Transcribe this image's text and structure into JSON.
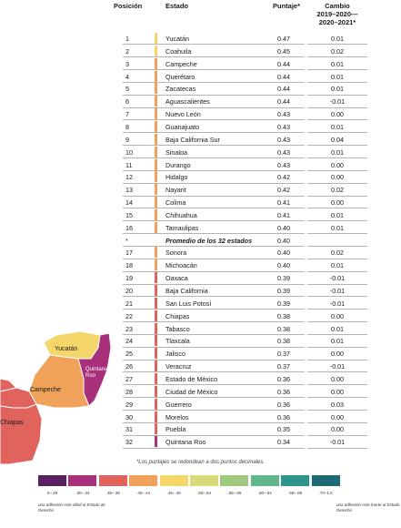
{
  "headers": {
    "position": "Posición",
    "state": "Estado",
    "score": "Puntaje*",
    "change_line1": "Cambio",
    "change_line2": "2019–2020—",
    "change_line3": "2020–2021*"
  },
  "chart_data": {
    "type": "table",
    "columns": [
      "Posición",
      "Estado",
      "Puntaje*",
      "Cambio 2019–2020— 2020–2021*"
    ],
    "rows": [
      {
        "rank": "1",
        "state": "Yucatán",
        "score": "0.47",
        "change": "0.01"
      },
      {
        "rank": "2",
        "state": "Coahuila",
        "score": "0.45",
        "change": "0.02"
      },
      {
        "rank": "3",
        "state": "Campeche",
        "score": "0.44",
        "change": "0.01"
      },
      {
        "rank": "4",
        "state": "Querétaro",
        "score": "0.44",
        "change": "0.01"
      },
      {
        "rank": "5",
        "state": "Zacatecas",
        "score": "0.44",
        "change": "0.01"
      },
      {
        "rank": "6",
        "state": "Aguascalientes",
        "score": "0.44",
        "change": "-0.01"
      },
      {
        "rank": "7",
        "state": "Nuevo León",
        "score": "0.43",
        "change": "0.00"
      },
      {
        "rank": "8",
        "state": "Guanajuato",
        "score": "0.43",
        "change": "0.01"
      },
      {
        "rank": "9",
        "state": "Baja California Sur",
        "score": "0.43",
        "change": "0.04"
      },
      {
        "rank": "10",
        "state": "Sinaloa",
        "score": "0.43",
        "change": "0.01"
      },
      {
        "rank": "11",
        "state": "Durango",
        "score": "0.43",
        "change": "0.00"
      },
      {
        "rank": "12",
        "state": "Hidalgo",
        "score": "0.42",
        "change": "0.00"
      },
      {
        "rank": "13",
        "state": "Nayarit",
        "score": "0.42",
        "change": "0.02"
      },
      {
        "rank": "14",
        "state": "Colima",
        "score": "0.41",
        "change": "0.00"
      },
      {
        "rank": "15",
        "state": "Chihuahua",
        "score": "0.41",
        "change": "0.01"
      },
      {
        "rank": "16",
        "state": "Tamaulipas",
        "score": "0.40",
        "change": "0.01"
      },
      {
        "rank": "*",
        "state": "Promedio de los 32 estados",
        "score": "0.40",
        "change": "",
        "average": true
      },
      {
        "rank": "17",
        "state": "Sonora",
        "score": "0.40",
        "change": "0.02"
      },
      {
        "rank": "18",
        "state": "Michoacán",
        "score": "0.40",
        "change": "0.01"
      },
      {
        "rank": "19",
        "state": "Oaxaca",
        "score": "0.39",
        "change": "-0.01"
      },
      {
        "rank": "20",
        "state": "Baja California",
        "score": "0.39",
        "change": "-0.01"
      },
      {
        "rank": "21",
        "state": "San Luis Potosí",
        "score": "0.39",
        "change": "-0.01"
      },
      {
        "rank": "22",
        "state": "Chiapas",
        "score": "0.38",
        "change": "0.00"
      },
      {
        "rank": "23",
        "state": "Tabasco",
        "score": "0.38",
        "change": "0.01"
      },
      {
        "rank": "24",
        "state": "Tlaxcala",
        "score": "0.38",
        "change": "0.01"
      },
      {
        "rank": "25",
        "state": "Jalisco",
        "score": "0.37",
        "change": "0.00"
      },
      {
        "rank": "26",
        "state": "Veracruz",
        "score": "0.37",
        "change": "-0.01"
      },
      {
        "rank": "27",
        "state": "Estado de México",
        "score": "0.36",
        "change": "0.00"
      },
      {
        "rank": "28",
        "state": "Ciudad de México",
        "score": "0.36",
        "change": "0.00"
      },
      {
        "rank": "29",
        "state": "Guerrero",
        "score": "0.36",
        "change": "0.03"
      },
      {
        "rank": "30",
        "state": "Morelos",
        "score": "0.36",
        "change": "0.00"
      },
      {
        "rank": "31",
        "state": "Puebla",
        "score": "0.35",
        "change": "0.00"
      },
      {
        "rank": "32",
        "state": "Quintana Roo",
        "score": "0.34",
        "change": "-0.01"
      }
    ]
  },
  "footnote": "*Los puntajes se redondean a dos puntos decimales.",
  "legend": {
    "bins": [
      {
        "label": "0–.29",
        "color": "#5a1f63"
      },
      {
        "label": ".30–.34",
        "color": "#a8307a"
      },
      {
        "label": ".35–.39",
        "color": "#e0635d"
      },
      {
        "label": ".40–.44",
        "color": "#f0a15a"
      },
      {
        "label": ".45–.49",
        "color": "#f5d66a"
      },
      {
        "label": ".50–.54",
        "color": "#d6dc7c"
      },
      {
        "label": ".55–.59",
        "color": "#9fc77e"
      },
      {
        "label": ".60–.64",
        "color": "#5fb68f"
      },
      {
        "label": ".65–.69",
        "color": "#2f958c"
      },
      {
        "label": ".70–1.0",
        "color": "#1d6b76"
      }
    ],
    "low_label": "una adhesión más débil al Estado de Derecho",
    "high_label": "una adhesión más fuerte al Estado de Derecho"
  },
  "map_labels": {
    "yucatan": "Yucatán",
    "quintana_roo": "Quintana Roo",
    "campeche": "Campeche",
    "chiapas": "Chiapas"
  }
}
